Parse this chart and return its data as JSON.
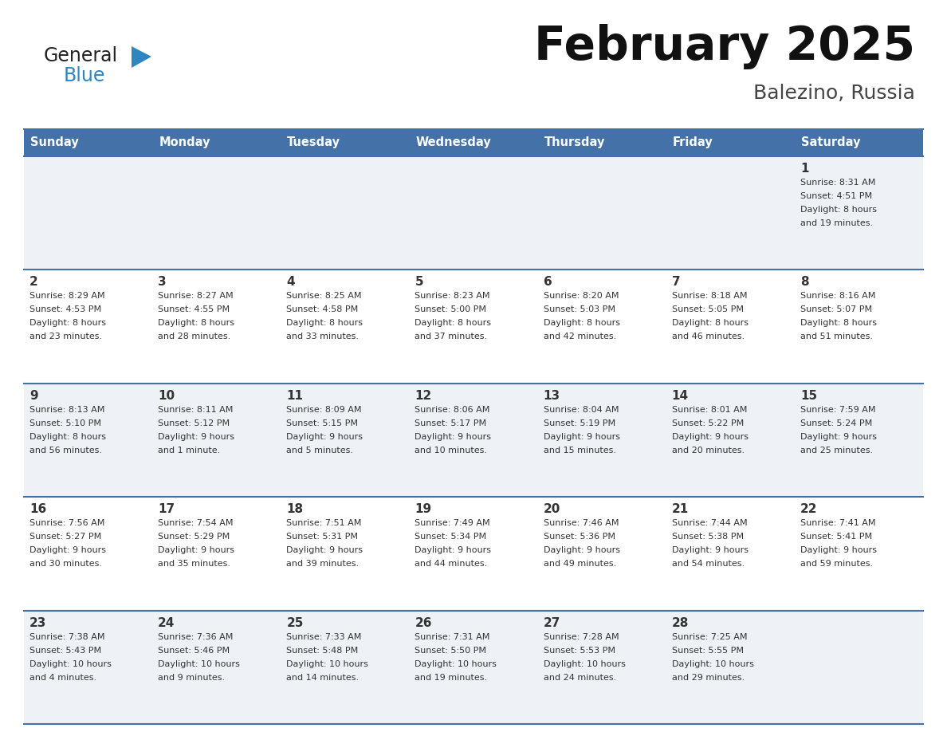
{
  "title": "February 2025",
  "subtitle": "Balezino, Russia",
  "header_bg": "#4472a8",
  "header_text_color": "#ffffff",
  "cell_bg_odd": "#eef2f7",
  "cell_bg_even": "#ffffff",
  "text_color": "#333333",
  "logo_general_color": "#222222",
  "logo_blue_color": "#2e86c1",
  "logo_triangle_color": "#2e86c1",
  "border_color": "#4472a8",
  "days_of_week": [
    "Sunday",
    "Monday",
    "Tuesday",
    "Wednesday",
    "Thursday",
    "Friday",
    "Saturday"
  ],
  "weeks": [
    [
      {
        "day": "",
        "sunrise": "",
        "sunset": "",
        "daylight": ""
      },
      {
        "day": "",
        "sunrise": "",
        "sunset": "",
        "daylight": ""
      },
      {
        "day": "",
        "sunrise": "",
        "sunset": "",
        "daylight": ""
      },
      {
        "day": "",
        "sunrise": "",
        "sunset": "",
        "daylight": ""
      },
      {
        "day": "",
        "sunrise": "",
        "sunset": "",
        "daylight": ""
      },
      {
        "day": "",
        "sunrise": "",
        "sunset": "",
        "daylight": ""
      },
      {
        "day": "1",
        "sunrise": "8:31 AM",
        "sunset": "4:51 PM",
        "daylight": "8 hours\nand 19 minutes."
      }
    ],
    [
      {
        "day": "2",
        "sunrise": "8:29 AM",
        "sunset": "4:53 PM",
        "daylight": "8 hours\nand 23 minutes."
      },
      {
        "day": "3",
        "sunrise": "8:27 AM",
        "sunset": "4:55 PM",
        "daylight": "8 hours\nand 28 minutes."
      },
      {
        "day": "4",
        "sunrise": "8:25 AM",
        "sunset": "4:58 PM",
        "daylight": "8 hours\nand 33 minutes."
      },
      {
        "day": "5",
        "sunrise": "8:23 AM",
        "sunset": "5:00 PM",
        "daylight": "8 hours\nand 37 minutes."
      },
      {
        "day": "6",
        "sunrise": "8:20 AM",
        "sunset": "5:03 PM",
        "daylight": "8 hours\nand 42 minutes."
      },
      {
        "day": "7",
        "sunrise": "8:18 AM",
        "sunset": "5:05 PM",
        "daylight": "8 hours\nand 46 minutes."
      },
      {
        "day": "8",
        "sunrise": "8:16 AM",
        "sunset": "5:07 PM",
        "daylight": "8 hours\nand 51 minutes."
      }
    ],
    [
      {
        "day": "9",
        "sunrise": "8:13 AM",
        "sunset": "5:10 PM",
        "daylight": "8 hours\nand 56 minutes."
      },
      {
        "day": "10",
        "sunrise": "8:11 AM",
        "sunset": "5:12 PM",
        "daylight": "9 hours\nand 1 minute."
      },
      {
        "day": "11",
        "sunrise": "8:09 AM",
        "sunset": "5:15 PM",
        "daylight": "9 hours\nand 5 minutes."
      },
      {
        "day": "12",
        "sunrise": "8:06 AM",
        "sunset": "5:17 PM",
        "daylight": "9 hours\nand 10 minutes."
      },
      {
        "day": "13",
        "sunrise": "8:04 AM",
        "sunset": "5:19 PM",
        "daylight": "9 hours\nand 15 minutes."
      },
      {
        "day": "14",
        "sunrise": "8:01 AM",
        "sunset": "5:22 PM",
        "daylight": "9 hours\nand 20 minutes."
      },
      {
        "day": "15",
        "sunrise": "7:59 AM",
        "sunset": "5:24 PM",
        "daylight": "9 hours\nand 25 minutes."
      }
    ],
    [
      {
        "day": "16",
        "sunrise": "7:56 AM",
        "sunset": "5:27 PM",
        "daylight": "9 hours\nand 30 minutes."
      },
      {
        "day": "17",
        "sunrise": "7:54 AM",
        "sunset": "5:29 PM",
        "daylight": "9 hours\nand 35 minutes."
      },
      {
        "day": "18",
        "sunrise": "7:51 AM",
        "sunset": "5:31 PM",
        "daylight": "9 hours\nand 39 minutes."
      },
      {
        "day": "19",
        "sunrise": "7:49 AM",
        "sunset": "5:34 PM",
        "daylight": "9 hours\nand 44 minutes."
      },
      {
        "day": "20",
        "sunrise": "7:46 AM",
        "sunset": "5:36 PM",
        "daylight": "9 hours\nand 49 minutes."
      },
      {
        "day": "21",
        "sunrise": "7:44 AM",
        "sunset": "5:38 PM",
        "daylight": "9 hours\nand 54 minutes."
      },
      {
        "day": "22",
        "sunrise": "7:41 AM",
        "sunset": "5:41 PM",
        "daylight": "9 hours\nand 59 minutes."
      }
    ],
    [
      {
        "day": "23",
        "sunrise": "7:38 AM",
        "sunset": "5:43 PM",
        "daylight": "10 hours\nand 4 minutes."
      },
      {
        "day": "24",
        "sunrise": "7:36 AM",
        "sunset": "5:46 PM",
        "daylight": "10 hours\nand 9 minutes."
      },
      {
        "day": "25",
        "sunrise": "7:33 AM",
        "sunset": "5:48 PM",
        "daylight": "10 hours\nand 14 minutes."
      },
      {
        "day": "26",
        "sunrise": "7:31 AM",
        "sunset": "5:50 PM",
        "daylight": "10 hours\nand 19 minutes."
      },
      {
        "day": "27",
        "sunrise": "7:28 AM",
        "sunset": "5:53 PM",
        "daylight": "10 hours\nand 24 minutes."
      },
      {
        "day": "28",
        "sunrise": "7:25 AM",
        "sunset": "5:55 PM",
        "daylight": "10 hours\nand 29 minutes."
      },
      {
        "day": "",
        "sunrise": "",
        "sunset": "",
        "daylight": ""
      }
    ]
  ]
}
